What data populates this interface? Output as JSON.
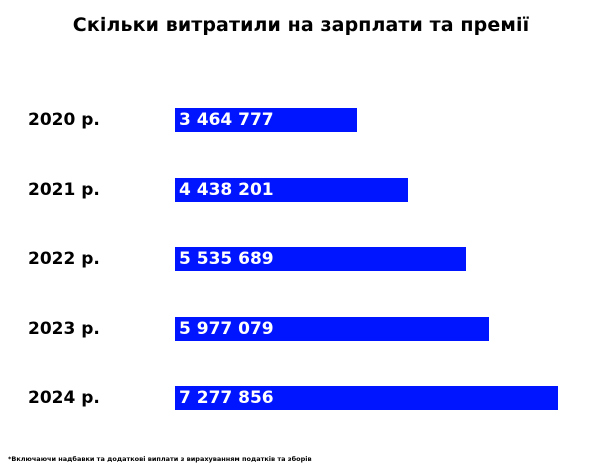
{
  "chart_data": {
    "type": "bar",
    "orientation": "horizontal",
    "title": "Скільки витратили на зарплати та премії",
    "categories": [
      "2020 р.",
      "2021 р.",
      "2022 р.",
      "2023 р.",
      "2024 р."
    ],
    "values": [
      3464777,
      4438201,
      5535689,
      5977079,
      7277856
    ],
    "value_labels": [
      "3 464 777",
      "4 438 201",
      "5 535 689",
      "5 977 079",
      "7 277 856"
    ],
    "bar_color": "#0015ff",
    "grid": false,
    "legend": "none",
    "footnote": "*Включаючи надбавки та додаткові виплати з вирахуванням податків та зборів"
  }
}
